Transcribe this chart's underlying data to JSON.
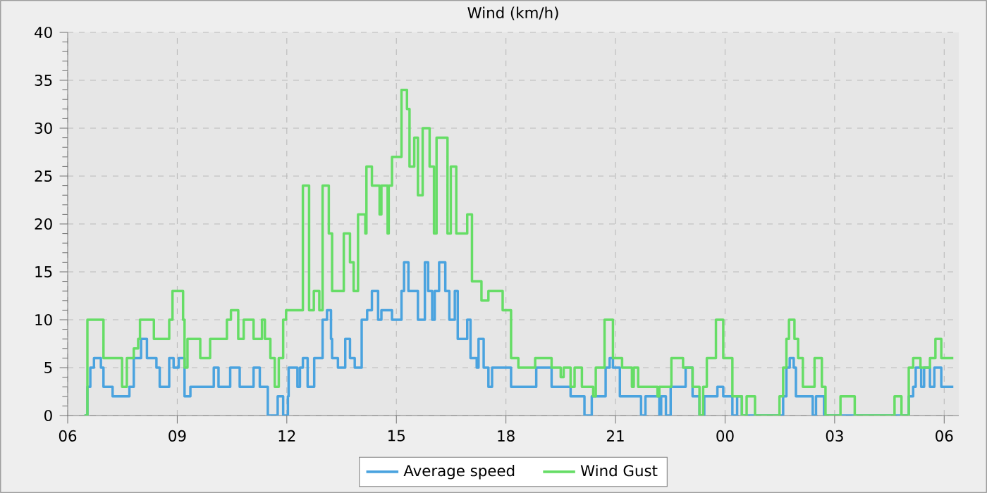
{
  "chart_data": {
    "type": "step",
    "title": "Wind (km/h)",
    "xlim": [
      6,
      30.4
    ],
    "ylim": [
      0,
      40
    ],
    "xticks": [
      {
        "value": 6,
        "label": "06"
      },
      {
        "value": 9,
        "label": "09"
      },
      {
        "value": 12,
        "label": "12"
      },
      {
        "value": 15,
        "label": "15"
      },
      {
        "value": 18,
        "label": "18"
      },
      {
        "value": 21,
        "label": "21"
      },
      {
        "value": 24,
        "label": "00"
      },
      {
        "value": 27,
        "label": "03"
      },
      {
        "value": 30,
        "label": "06"
      }
    ],
    "yticks": [
      0,
      5,
      10,
      15,
      20,
      25,
      30,
      35,
      40
    ],
    "grid": true,
    "legend": "bottom",
    "marker": "none",
    "line_style": "solid",
    "series": [
      {
        "name": "Average speed",
        "color": "#4aa3df",
        "x": [
          6.46,
          6.54,
          6.62,
          6.72,
          6.91,
          6.98,
          7.23,
          7.69,
          7.81,
          8.01,
          8.17,
          8.43,
          8.52,
          8.78,
          8.9,
          9.04,
          9.2,
          9.36,
          10.0,
          10.13,
          10.45,
          10.71,
          11.09,
          11.26,
          11.48,
          11.75,
          11.9,
          12.03,
          12.05,
          12.29,
          12.36,
          12.44,
          12.57,
          12.75,
          12.98,
          13.1,
          13.21,
          13.24,
          13.4,
          13.6,
          13.73,
          13.86,
          14.05,
          14.2,
          14.33,
          14.5,
          14.59,
          14.88,
          15.14,
          15.21,
          15.33,
          15.59,
          15.78,
          15.87,
          15.98,
          16.05,
          16.17,
          16.34,
          16.45,
          16.6,
          16.68,
          16.94,
          17.03,
          17.2,
          17.25,
          17.39,
          17.52,
          17.62,
          17.91,
          18.14,
          18.83,
          19.25,
          19.77,
          20.15,
          20.35,
          20.73,
          20.84,
          20.93,
          21.12,
          21.7,
          21.82,
          22.2,
          22.25,
          22.38,
          22.51,
          22.92,
          23.11,
          23.3,
          23.43,
          23.79,
          23.95,
          24.2,
          24.33,
          24.46,
          25.59,
          25.68,
          25.77,
          25.88,
          25.94,
          26.4,
          26.49,
          26.71,
          29.03,
          29.15,
          29.22,
          29.37,
          29.45,
          29.61,
          29.73,
          29.92,
          30.25
        ],
        "values": [
          0,
          3,
          5,
          6,
          5,
          3,
          2,
          3,
          6,
          8,
          6,
          5,
          3,
          6,
          5,
          6,
          2,
          3,
          5,
          3,
          5,
          3,
          5,
          3,
          0,
          2,
          0,
          2,
          5,
          3,
          5,
          6,
          3,
          6,
          10,
          11,
          8,
          6,
          5,
          8,
          6,
          5,
          10,
          11,
          13,
          10,
          11,
          10,
          13,
          16,
          13,
          10,
          16,
          13,
          10,
          13,
          16,
          13,
          10,
          13,
          8,
          10,
          6,
          5,
          8,
          5,
          3,
          5,
          5,
          3,
          5,
          3,
          2,
          0,
          2,
          5,
          6,
          5,
          2,
          0,
          2,
          0,
          2,
          0,
          3,
          5,
          2,
          0,
          2,
          3,
          2,
          0,
          2,
          0,
          2,
          5,
          6,
          5,
          2,
          0,
          2,
          0,
          2,
          3,
          5,
          3,
          5,
          3,
          5,
          3,
          3
        ]
      },
      {
        "name": "Wind Gust",
        "color": "#66dd66",
        "x": [
          6.46,
          6.54,
          6.98,
          7.49,
          7.62,
          7.81,
          7.93,
          7.98,
          8.36,
          8.78,
          8.87,
          9.16,
          9.2,
          9.28,
          9.63,
          9.9,
          10.36,
          10.47,
          10.67,
          10.82,
          11.09,
          11.32,
          11.4,
          11.55,
          11.67,
          11.78,
          11.9,
          11.98,
          12.44,
          12.61,
          12.74,
          12.89,
          12.98,
          13.15,
          13.24,
          13.56,
          13.73,
          13.83,
          13.95,
          14.15,
          14.18,
          14.33,
          14.54,
          14.59,
          14.76,
          14.79,
          14.88,
          15.14,
          15.29,
          15.36,
          15.49,
          15.59,
          15.72,
          15.91,
          16.03,
          16.1,
          16.4,
          16.49,
          16.64,
          16.94,
          17.07,
          17.33,
          17.52,
          17.91,
          18.14,
          18.34,
          18.8,
          19.25,
          19.5,
          19.58,
          19.77,
          19.88,
          20.08,
          20.39,
          20.46,
          20.7,
          20.93,
          21.18,
          21.45,
          21.5,
          21.62,
          22.15,
          22.2,
          22.53,
          22.85,
          23.11,
          23.3,
          23.4,
          23.5,
          23.75,
          23.95,
          24.2,
          24.46,
          24.59,
          24.82,
          25.49,
          25.59,
          25.68,
          25.75,
          25.9,
          26.0,
          26.13,
          26.45,
          26.65,
          26.75,
          27.16,
          27.55,
          28.64,
          28.83,
          29.03,
          29.15,
          29.35,
          29.61,
          29.76,
          29.92,
          30.25
        ],
        "values": [
          0,
          10,
          6,
          3,
          6,
          7,
          8,
          10,
          8,
          10,
          13,
          10,
          5,
          8,
          6,
          8,
          10,
          11,
          8,
          10,
          8,
          10,
          8,
          6,
          3,
          6,
          10,
          11,
          24,
          11,
          13,
          11,
          24,
          19,
          13,
          19,
          16,
          13,
          21,
          19,
          26,
          24,
          21,
          24,
          19,
          24,
          27,
          34,
          32,
          26,
          29,
          23,
          30,
          26,
          19,
          29,
          19,
          26,
          19,
          21,
          14,
          12,
          13,
          11,
          6,
          5,
          6,
          5,
          4,
          5,
          3,
          5,
          3,
          2,
          5,
          10,
          6,
          5,
          3,
          5,
          3,
          2,
          3,
          6,
          5,
          3,
          0,
          3,
          6,
          10,
          6,
          2,
          0,
          2,
          0,
          2,
          5,
          8,
          10,
          8,
          6,
          3,
          6,
          3,
          0,
          2,
          0,
          2,
          0,
          5,
          6,
          5,
          6,
          8,
          6,
          6
        ]
      }
    ]
  }
}
